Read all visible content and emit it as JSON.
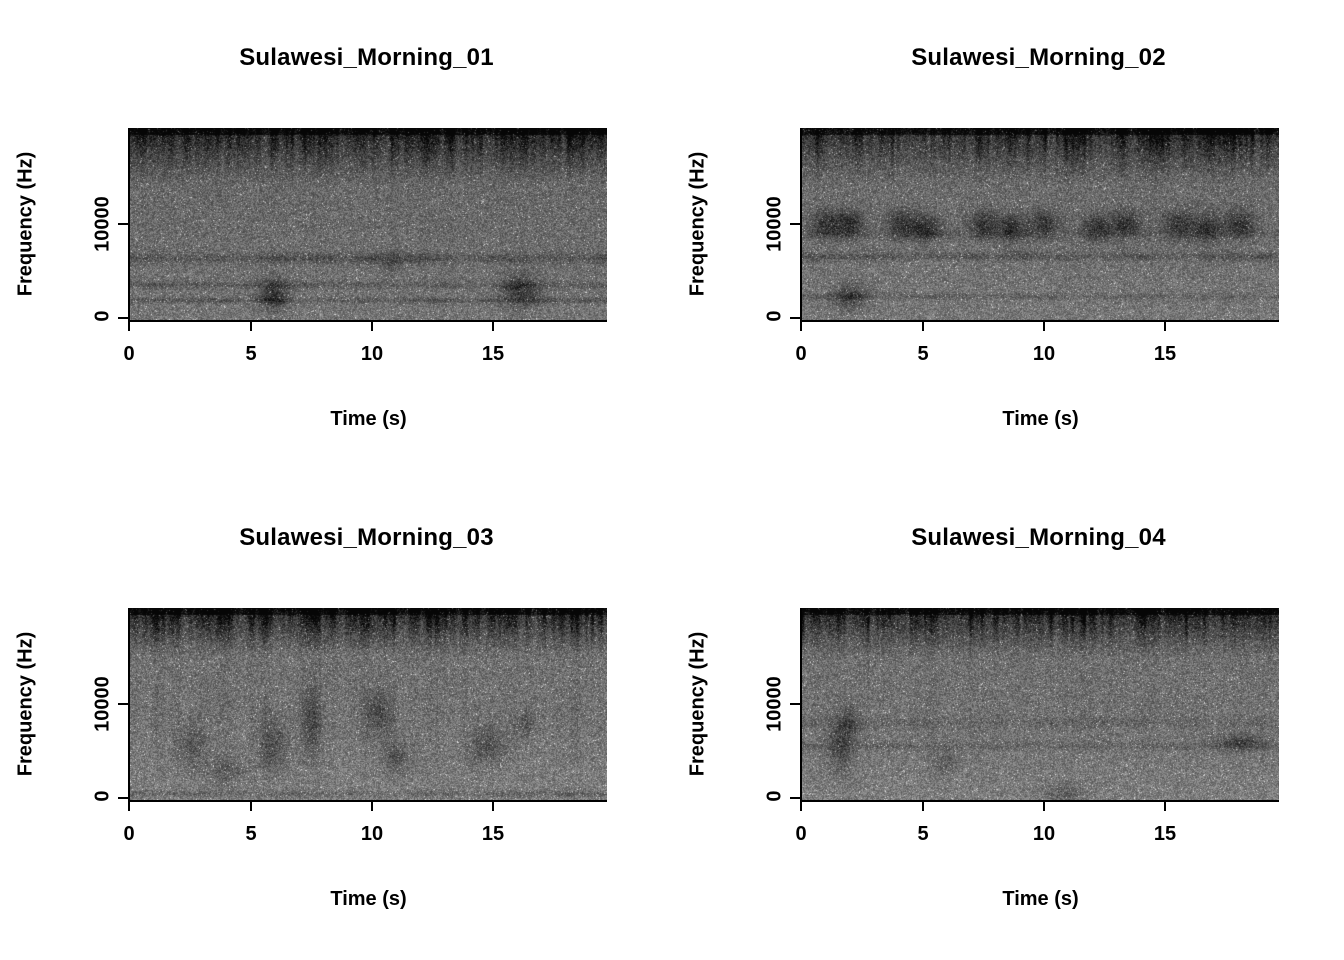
{
  "figure": {
    "background": "#ffffff",
    "text_color": "#000000",
    "layout": "2x2 grid of grayscale spectrograms"
  },
  "chart_data": [
    {
      "type": "heatmap",
      "title": "Sulawesi_Morning_01",
      "xlabel": "Time (s)",
      "ylabel": "Frequency (Hz)",
      "xlim": [
        0,
        19.7
      ],
      "ylim": [
        0,
        20000
      ],
      "x_ticks": [
        "0",
        "5",
        "10",
        "15"
      ],
      "x_tick_values": [
        0,
        5,
        10,
        15
      ],
      "y_ticks": [
        "0",
        "10000"
      ],
      "y_tick_values": [
        0,
        10000
      ],
      "colormap": "grayscale spectrogram, darker = higher amplitude",
      "description": "Broadband ambient noise; dense dark high-frequency band above ~15 kHz with vertical insect streaking; faint continuous horizontal bands near 4-7 kHz; sparse dark low-frequency marks around 2-3 kHz at ~6 s and ~16 s.",
      "render": {
        "seed": 11,
        "base": 98,
        "grain": 66,
        "top": {
          "zone": 0.3,
          "strength": 120,
          "streak": 0.9
        },
        "mid_streak": 0.15,
        "bands": [
          {
            "y": 0.68,
            "w": 0.018,
            "d": 40
          },
          {
            "y": 0.82,
            "w": 0.013,
            "d": 30
          },
          {
            "y": 0.9,
            "w": 0.01,
            "d": 34
          }
        ],
        "blobs": [
          {
            "x": 0.3,
            "y": 0.87,
            "rx": 0.022,
            "ry": 0.055,
            "d": 60
          },
          {
            "x": 0.82,
            "y": 0.85,
            "rx": 0.028,
            "ry": 0.06,
            "d": 55
          },
          {
            "x": 0.55,
            "y": 0.7,
            "rx": 0.015,
            "ry": 0.04,
            "d": 28
          }
        ]
      }
    },
    {
      "type": "heatmap",
      "title": "Sulawesi_Morning_02",
      "xlabel": "Time (s)",
      "ylabel": "Frequency (Hz)",
      "xlim": [
        0,
        19.7
      ],
      "ylim": [
        0,
        20000
      ],
      "x_ticks": [
        "0",
        "5",
        "10",
        "15"
      ],
      "x_tick_values": [
        0,
        5,
        10,
        15
      ],
      "y_ticks": [
        "0",
        "10000"
      ],
      "y_tick_values": [
        0,
        10000
      ],
      "colormap": "grayscale spectrogram, darker = higher amplitude",
      "description": "Similar high-frequency insect band with vertical streaks; repeated blocky call units around 9-10 kHz spaced along the recording; horizontal band near 6-7 kHz; dark low-frequency smudge near 2 s.",
      "render": {
        "seed": 22,
        "base": 101,
        "grain": 66,
        "top": {
          "zone": 0.3,
          "strength": 115,
          "streak": 0.95
        },
        "mid_streak": 0.2,
        "bands": [
          {
            "y": 0.55,
            "w": 0.02,
            "d": 18
          },
          {
            "y": 0.67,
            "w": 0.015,
            "d": 35
          },
          {
            "y": 0.88,
            "w": 0.012,
            "d": 26
          }
        ],
        "blobs": [
          {
            "x": 0.05,
            "y": 0.5,
            "rx": 0.022,
            "ry": 0.05,
            "d": 55
          },
          {
            "x": 0.1,
            "y": 0.5,
            "rx": 0.022,
            "ry": 0.05,
            "d": 55
          },
          {
            "x": 0.21,
            "y": 0.5,
            "rx": 0.022,
            "ry": 0.05,
            "d": 55
          },
          {
            "x": 0.26,
            "y": 0.52,
            "rx": 0.022,
            "ry": 0.05,
            "d": 55
          },
          {
            "x": 0.38,
            "y": 0.5,
            "rx": 0.022,
            "ry": 0.05,
            "d": 55
          },
          {
            "x": 0.44,
            "y": 0.52,
            "rx": 0.022,
            "ry": 0.05,
            "d": 55
          },
          {
            "x": 0.51,
            "y": 0.5,
            "rx": 0.022,
            "ry": 0.05,
            "d": 55
          },
          {
            "x": 0.62,
            "y": 0.52,
            "rx": 0.022,
            "ry": 0.05,
            "d": 55
          },
          {
            "x": 0.68,
            "y": 0.5,
            "rx": 0.022,
            "ry": 0.05,
            "d": 55
          },
          {
            "x": 0.79,
            "y": 0.5,
            "rx": 0.022,
            "ry": 0.05,
            "d": 55
          },
          {
            "x": 0.85,
            "y": 0.52,
            "rx": 0.022,
            "ry": 0.05,
            "d": 55
          },
          {
            "x": 0.92,
            "y": 0.5,
            "rx": 0.022,
            "ry": 0.05,
            "d": 55
          },
          {
            "x": 0.1,
            "y": 0.88,
            "rx": 0.025,
            "ry": 0.05,
            "d": 50
          }
        ]
      }
    },
    {
      "type": "heatmap",
      "title": "Sulawesi_Morning_03",
      "xlabel": "Time (s)",
      "ylabel": "Frequency (Hz)",
      "xlim": [
        0,
        19.7
      ],
      "ylim": [
        0,
        20000
      ],
      "x_ticks": [
        "0",
        "5",
        "10",
        "15"
      ],
      "x_tick_values": [
        0,
        5,
        10,
        15
      ],
      "y_ticks": [
        "0",
        "10000"
      ],
      "y_tick_values": [
        0,
        10000
      ],
      "colormap": "grayscale spectrogram, darker = higher amplitude",
      "description": "Lighter mid-band with strong vertical streaks descending from the dark high-frequency band; scattered dark activity between ~2-8 kHz across the recording; thin dark band at the very bottom.",
      "render": {
        "seed": 33,
        "base": 108,
        "grain": 70,
        "top": {
          "zone": 0.26,
          "strength": 130,
          "streak": 1.0
        },
        "mid_streak": 0.5,
        "bands": [
          {
            "y": 0.97,
            "w": 0.012,
            "d": 30
          }
        ],
        "blobs": [
          {
            "x": 0.13,
            "y": 0.72,
            "rx": 0.02,
            "ry": 0.08,
            "d": 35
          },
          {
            "x": 0.3,
            "y": 0.72,
            "rx": 0.02,
            "ry": 0.1,
            "d": 40
          },
          {
            "x": 0.38,
            "y": 0.6,
            "rx": 0.015,
            "ry": 0.12,
            "d": 38
          },
          {
            "x": 0.52,
            "y": 0.55,
            "rx": 0.02,
            "ry": 0.08,
            "d": 40
          },
          {
            "x": 0.56,
            "y": 0.78,
            "rx": 0.02,
            "ry": 0.06,
            "d": 36
          },
          {
            "x": 0.75,
            "y": 0.72,
            "rx": 0.025,
            "ry": 0.07,
            "d": 38
          },
          {
            "x": 0.83,
            "y": 0.6,
            "rx": 0.015,
            "ry": 0.05,
            "d": 30
          },
          {
            "x": 0.2,
            "y": 0.85,
            "rx": 0.03,
            "ry": 0.05,
            "d": 30
          }
        ]
      }
    },
    {
      "type": "heatmap",
      "title": "Sulawesi_Morning_04",
      "xlabel": "Time (s)",
      "ylabel": "Frequency (Hz)",
      "xlim": [
        0,
        19.7
      ],
      "ylim": [
        0,
        20000
      ],
      "x_ticks": [
        "0",
        "5",
        "10",
        "15"
      ],
      "x_tick_values": [
        0,
        5,
        10,
        15
      ],
      "y_ticks": [
        "0",
        "10000"
      ],
      "y_tick_values": [
        0,
        10000
      ],
      "colormap": "grayscale spectrogram, darker = higher amplitude",
      "description": "Dark streaked high-frequency band; faint horizontal bands near 6-8 kHz; dark low-mid marks near 2 s on the left and a short dark dash around 5-6 kHz near the right edge.",
      "render": {
        "seed": 44,
        "base": 106,
        "grain": 68,
        "top": {
          "zone": 0.27,
          "strength": 125,
          "streak": 1.0
        },
        "mid_streak": 0.35,
        "bands": [
          {
            "y": 0.6,
            "w": 0.02,
            "d": 16
          },
          {
            "y": 0.72,
            "w": 0.015,
            "d": 20
          }
        ],
        "blobs": [
          {
            "x": 0.08,
            "y": 0.72,
            "rx": 0.02,
            "ry": 0.09,
            "d": 45
          },
          {
            "x": 0.1,
            "y": 0.6,
            "rx": 0.015,
            "ry": 0.06,
            "d": 35
          },
          {
            "x": 0.92,
            "y": 0.7,
            "rx": 0.035,
            "ry": 0.03,
            "d": 45
          },
          {
            "x": 0.3,
            "y": 0.8,
            "rx": 0.02,
            "ry": 0.05,
            "d": 25
          },
          {
            "x": 0.55,
            "y": 0.97,
            "rx": 0.03,
            "ry": 0.04,
            "d": 30
          }
        ]
      }
    }
  ]
}
